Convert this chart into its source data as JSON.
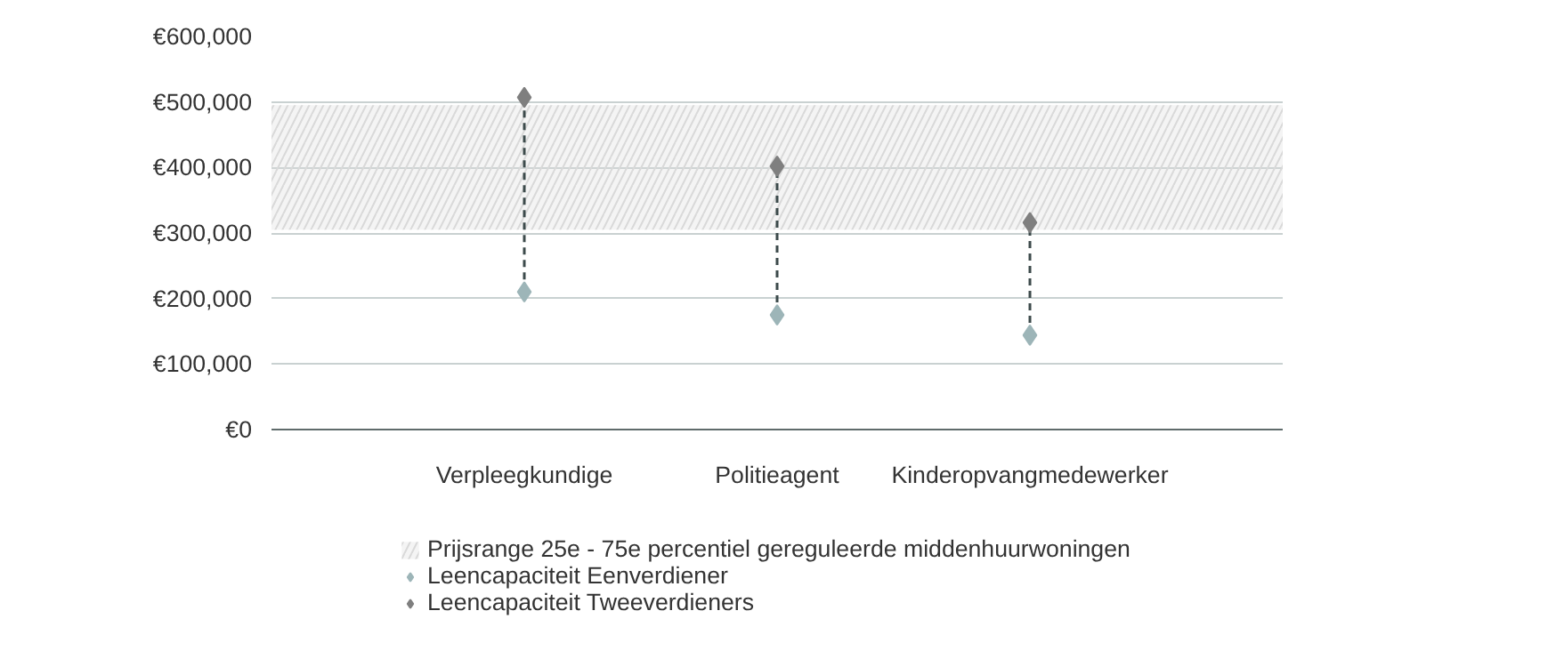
{
  "chart_data": {
    "type": "scatter",
    "categories": [
      "Verpleegkundige",
      "Politieagent",
      "Kinderopvangmedewerker"
    ],
    "series": [
      {
        "name": "Leencapaciteit Eenverdiener",
        "color": "#9db5b8",
        "values": [
          210000,
          175000,
          144000
        ]
      },
      {
        "name": "Leencapaciteit Tweeverdieners",
        "color": "#7f7f7f",
        "values": [
          507000,
          402000,
          316000
        ]
      }
    ],
    "bands": [
      {
        "axis": "y",
        "from": 305000,
        "to": 495000,
        "label": "Prijsrange 25e - 75e percentiel gereguleerde middenhuurwoningen",
        "color": "#d9d9d9"
      }
    ],
    "ylim": [
      0,
      600000
    ],
    "yticks": [
      {
        "value": 0,
        "label": "€0"
      },
      {
        "value": 100000,
        "label": "€100,000"
      },
      {
        "value": 200000,
        "label": "€200,000"
      },
      {
        "value": 300000,
        "label": "€300,000"
      },
      {
        "value": 400000,
        "label": "€400,000"
      },
      {
        "value": 500000,
        "label": "€500,000"
      },
      {
        "value": 600000,
        "label": "€600,000"
      }
    ],
    "grid": "y",
    "legend": "bottom",
    "marker": "diamond",
    "line_style": "dashed"
  }
}
